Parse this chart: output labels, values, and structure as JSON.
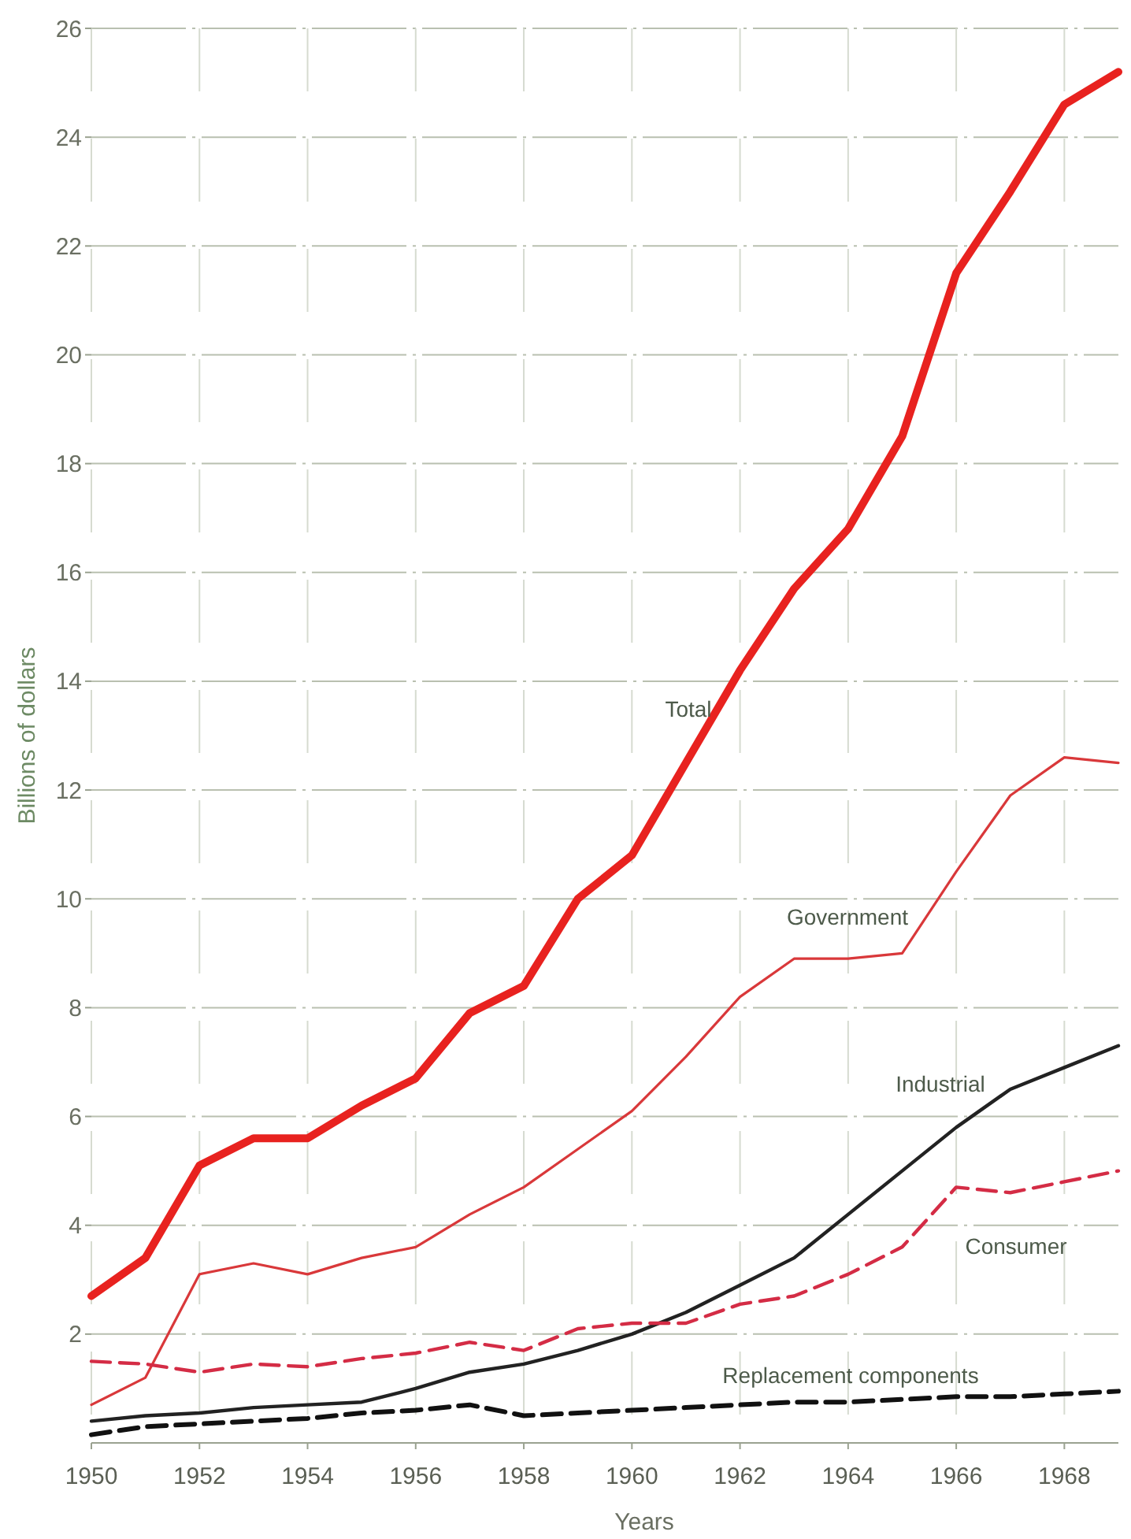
{
  "chart_data": {
    "type": "line",
    "xlabel": "Years",
    "ylabel": "Billions of dollars",
    "x": [
      1950,
      1951,
      1952,
      1953,
      1954,
      1955,
      1956,
      1957,
      1958,
      1959,
      1960,
      1961,
      1962,
      1963,
      1964,
      1965,
      1966,
      1967,
      1968,
      1969
    ],
    "xlim": [
      1950,
      1969
    ],
    "xticks": [
      1950,
      1952,
      1954,
      1956,
      1958,
      1960,
      1962,
      1964,
      1966,
      1968
    ],
    "ylim": [
      0,
      26
    ],
    "yticks": [
      2,
      4,
      6,
      8,
      10,
      12,
      14,
      16,
      18,
      20,
      22,
      24,
      26
    ],
    "grid": true,
    "marker": "none",
    "series": [
      {
        "name": "Total",
        "color": "#e8221f",
        "line_style": "solid",
        "values": [
          2.7,
          3.4,
          5.1,
          5.6,
          5.6,
          6.2,
          6.7,
          7.9,
          8.4,
          10.0,
          10.8,
          12.5,
          14.2,
          15.7,
          16.8,
          18.5,
          21.5,
          23.0,
          24.6,
          25.2
        ]
      },
      {
        "name": "Government",
        "color": "#d9383a",
        "line_style": "solid",
        "values": [
          0.7,
          1.2,
          3.1,
          3.3,
          3.1,
          3.4,
          3.6,
          4.2,
          4.7,
          5.4,
          6.1,
          7.1,
          8.2,
          8.9,
          8.9,
          9.0,
          10.5,
          11.9,
          12.6,
          12.5
        ]
      },
      {
        "name": "Industrial",
        "color": "#222222",
        "line_style": "solid",
        "values": [
          0.4,
          0.5,
          0.55,
          0.65,
          0.7,
          0.75,
          1.0,
          1.3,
          1.45,
          1.7,
          2.0,
          2.4,
          2.9,
          3.4,
          4.2,
          5.0,
          5.8,
          6.5,
          6.9,
          7.3
        ]
      },
      {
        "name": "Consumer",
        "color": "#d42c45",
        "line_style": "dashed",
        "values": [
          1.5,
          1.45,
          1.3,
          1.45,
          1.4,
          1.55,
          1.65,
          1.85,
          1.7,
          2.1,
          2.2,
          2.2,
          2.55,
          2.7,
          3.1,
          3.6,
          4.7,
          4.6,
          4.8,
          5.0
        ]
      },
      {
        "name": "Replacement components",
        "color": "#111111",
        "line_style": "dashed",
        "values": [
          0.15,
          0.3,
          0.35,
          0.4,
          0.45,
          0.55,
          0.6,
          0.7,
          0.5,
          0.55,
          0.6,
          0.65,
          0.7,
          0.75,
          0.75,
          0.8,
          0.85,
          0.85,
          0.9,
          0.95
        ]
      }
    ]
  }
}
